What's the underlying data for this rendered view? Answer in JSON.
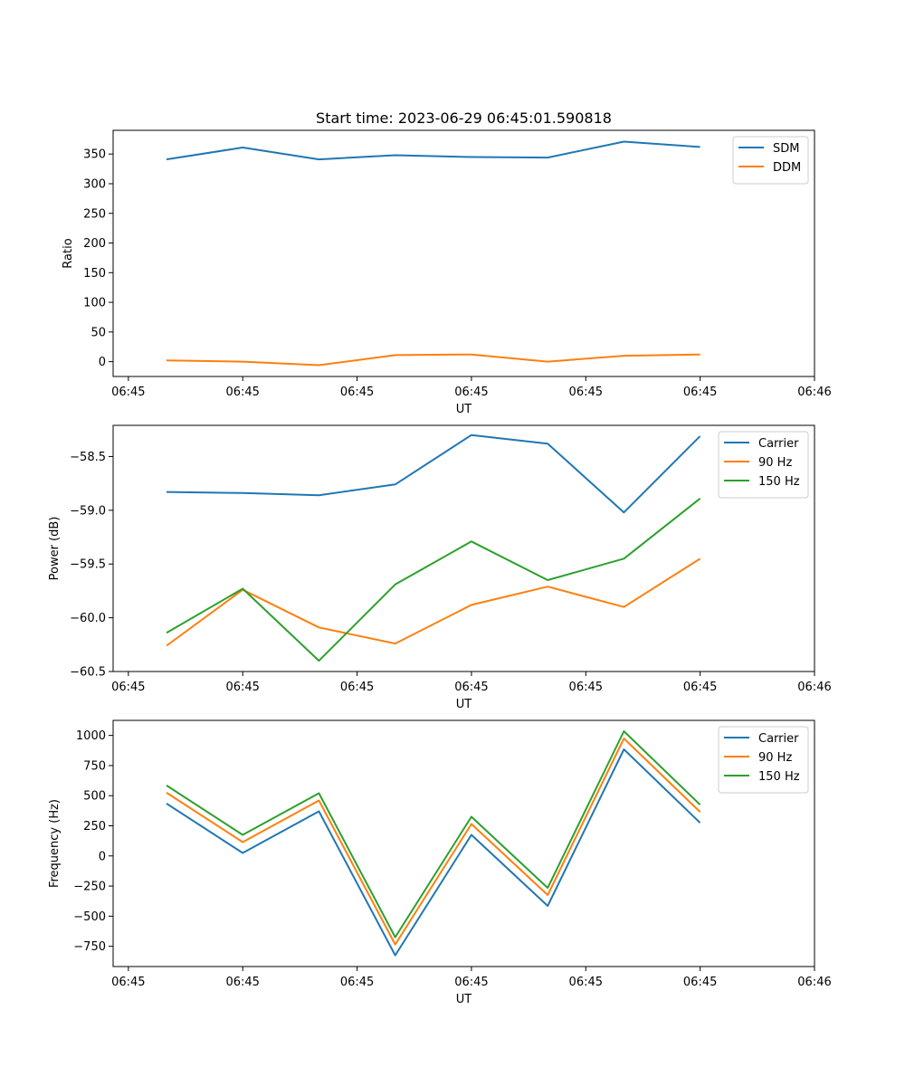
{
  "chart_data": [
    {
      "type": "line",
      "title": "Start time: 2023-06-29 06:45:01.590818",
      "xlabel": "UT",
      "ylabel": "Ratio",
      "x_tick_labels": [
        "06:45",
        "06:45",
        "06:45",
        "06:45",
        "06:45",
        "06:45",
        "06:46"
      ],
      "y_ticks": [
        "0",
        "50",
        "100",
        "150",
        "200",
        "250",
        "300",
        "350"
      ],
      "ylim": [
        -25,
        390
      ],
      "x": [
        1,
        2,
        3,
        4,
        5,
        6,
        7,
        8
      ],
      "xlim": [
        0.3,
        9.5
      ],
      "grid": false,
      "legend_position": "top-right",
      "series": [
        {
          "name": "SDM",
          "color": "#1f77b4",
          "values": [
            341,
            361,
            341,
            348,
            345,
            344,
            371,
            362
          ]
        },
        {
          "name": "DDM",
          "color": "#ff7f0e",
          "values": [
            2,
            0,
            -6,
            11,
            12,
            0,
            10,
            12
          ]
        }
      ]
    },
    {
      "type": "line",
      "title": "",
      "xlabel": "UT",
      "ylabel": "Power (dB)",
      "x_tick_labels": [
        "06:45",
        "06:45",
        "06:45",
        "06:45",
        "06:45",
        "06:45",
        "06:46"
      ],
      "y_ticks": [
        "−60.5",
        "−60.0",
        "−59.5",
        "−59.0",
        "−58.5"
      ],
      "ylim": [
        -60.5,
        -58.21
      ],
      "x": [
        1,
        2,
        3,
        4,
        5,
        6,
        7,
        8
      ],
      "xlim": [
        0.3,
        9.5
      ],
      "grid": false,
      "legend_position": "top-right",
      "series": [
        {
          "name": "Carrier",
          "color": "#1f77b4",
          "values": [
            -58.83,
            -58.84,
            -58.86,
            -58.76,
            -58.3,
            -58.38,
            -59.02,
            -58.31
          ]
        },
        {
          "name": "90 Hz",
          "color": "#ff7f0e",
          "values": [
            -60.26,
            -59.74,
            -60.09,
            -60.24,
            -59.88,
            -59.71,
            -59.9,
            -59.45
          ]
        },
        {
          "name": "150 Hz",
          "color": "#2ca02c",
          "values": [
            -60.14,
            -59.73,
            -60.4,
            -59.69,
            -59.29,
            -59.65,
            -59.45,
            -58.89
          ]
        }
      ]
    },
    {
      "type": "line",
      "title": "",
      "xlabel": "UT",
      "ylabel": "Frequency (Hz)",
      "x_tick_labels": [
        "06:45",
        "06:45",
        "06:45",
        "06:45",
        "06:45",
        "06:45",
        "06:46"
      ],
      "y_ticks": [
        "−750",
        "−500",
        "−250",
        "0",
        "250",
        "500",
        "750",
        "1000"
      ],
      "ylim": [
        -918,
        1125
      ],
      "x": [
        1,
        2,
        3,
        4,
        5,
        6,
        7,
        8
      ],
      "xlim": [
        0.3,
        9.5
      ],
      "grid": false,
      "legend_position": "top-right",
      "series": [
        {
          "name": "Carrier",
          "color": "#1f77b4",
          "values": [
            435,
            25,
            370,
            -825,
            175,
            -415,
            885,
            275
          ]
        },
        {
          "name": "90 Hz",
          "color": "#ff7f0e",
          "values": [
            525,
            115,
            460,
            -735,
            265,
            -325,
            975,
            365
          ]
        },
        {
          "name": "150 Hz",
          "color": "#2ca02c",
          "values": [
            585,
            175,
            520,
            -675,
            325,
            -265,
            1035,
            425
          ]
        }
      ]
    }
  ]
}
